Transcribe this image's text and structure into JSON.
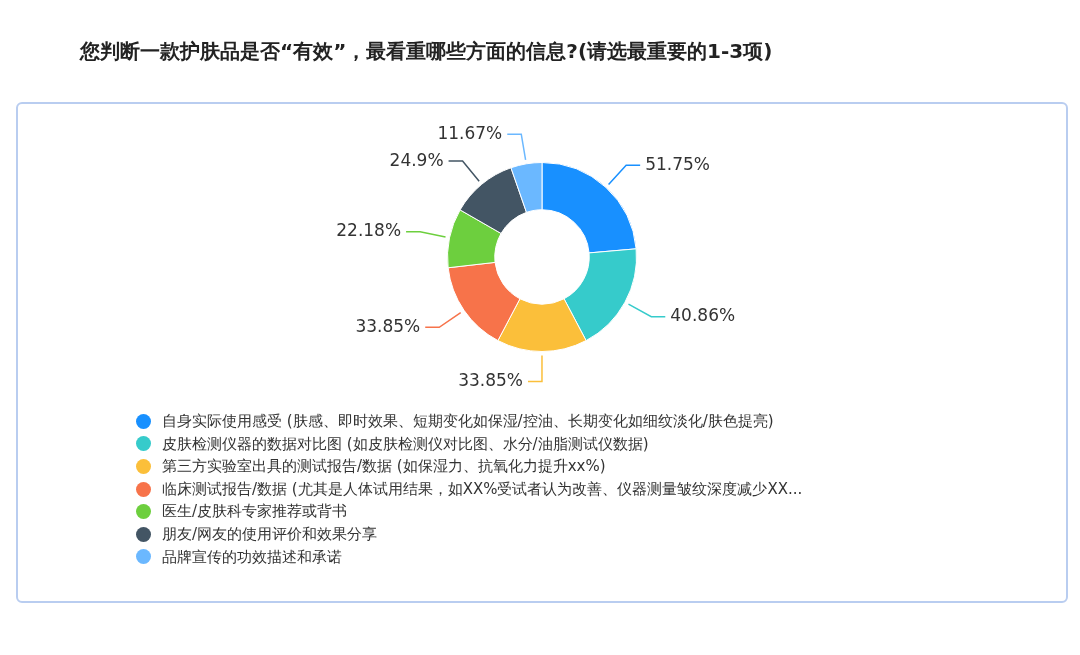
{
  "chart_data": {
    "type": "donut",
    "title": "您判断一款护肤品是否“有效”，最看重哪些方面的信息?(请选最重要的1-3项)",
    "categories": [
      "自身实际使用感受 (肤感、即时效果、短期变化如保湿/控油、长期变化如细纹淡化/肤色提亮)",
      "皮肤检测仪器的数据对比图 (如皮肤检测仪对比图、水分/油脂测试仪数据)",
      "第三方实验室出具的测试报告/数据 (如保湿力、抗氧化力提升xx%)",
      "临床测试报告/数据 (尤其是人体试用结果，如XX%受试者认为改善、仪器测量皱纹深度减少XX...",
      "医生/皮肤科专家推荐或背书",
      "朋友/网友的使用评价和效果分享",
      "品牌宣传的功效描述和承诺"
    ],
    "values": [
      51.75,
      40.86,
      33.85,
      33.85,
      22.18,
      24.9,
      11.67
    ],
    "colors": [
      "#1890ff",
      "#36cbcb",
      "#fbbf3a",
      "#f7734a",
      "#6dcf3e",
      "#435564",
      "#6bb8ff"
    ],
    "value_labels": [
      "51.75%",
      "40.86%",
      "33.85%",
      "33.85%",
      "22.18%",
      "24.9%",
      "11.67%"
    ],
    "legend": "bottom"
  }
}
